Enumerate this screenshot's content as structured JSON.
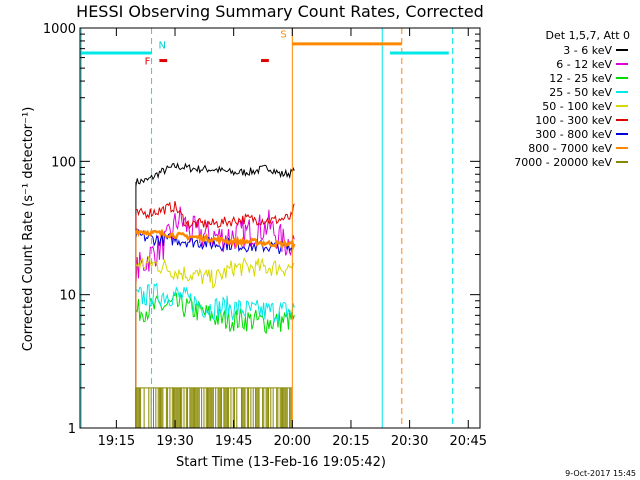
{
  "chart_data": {
    "type": "line",
    "title": "HESSI Observing Summary Count Rates, Corrected",
    "xlabel": "Start Time (13-Feb-16 19:05:42)",
    "ylabel": "Corrected Count Rate (s⁻¹ detector⁻¹)",
    "yscale": "log",
    "ylim": [
      1,
      1000
    ],
    "xlim": [
      "19:05:42",
      "20:48:00"
    ],
    "x_ticks": [
      "19:15",
      "19:30",
      "19:45",
      "20:00",
      "20:15",
      "20:30",
      "20:45"
    ],
    "y_ticks": [
      "1",
      "10",
      "100",
      "1000"
    ],
    "grid": false,
    "legend_position": "right",
    "legend_title": "Det 1,5,7, Att 0",
    "timestamp": "9-Oct-2017 15:45",
    "series": [
      {
        "name": "3 - 6 keV",
        "color": "#000000",
        "x": [
          "19:20",
          "19:23",
          "19:26",
          "19:30",
          "19:35",
          "19:40",
          "19:45",
          "19:50",
          "19:54",
          "19:57",
          "20:00",
          "20:00:30"
        ],
        "values": [
          70,
          72,
          82,
          92,
          88,
          87,
          82,
          84,
          90,
          80,
          82,
          85
        ]
      },
      {
        "name": "6 - 12 keV",
        "color": "#dd00dd",
        "x": [
          "19:20",
          "19:24",
          "19:28",
          "19:31",
          "19:34",
          "19:38",
          "19:42",
          "19:46",
          "19:50",
          "19:54",
          "19:58",
          "20:00:30"
        ],
        "values": [
          15,
          20,
          25,
          38,
          30,
          28,
          27,
          28,
          30,
          33,
          24,
          26
        ]
      },
      {
        "name": "12 - 25 keV",
        "color": "#00dd00",
        "x": [
          "19:20",
          "19:25",
          "19:30",
          "19:36",
          "19:42",
          "19:48",
          "19:54",
          "20:00",
          "20:00:30"
        ],
        "values": [
          7.5,
          8,
          8.5,
          7.5,
          6.5,
          6.5,
          6.2,
          6.5,
          7
        ]
      },
      {
        "name": "25 - 50 keV",
        "color": "#00e8e8",
        "x": [
          "19:20",
          "19:25",
          "19:30",
          "19:34",
          "19:38",
          "19:44",
          "19:50",
          "19:56",
          "20:00",
          "20:00:30"
        ],
        "values": [
          9.5,
          10,
          10,
          9,
          8,
          8,
          7.5,
          7.5,
          7.5,
          8
        ]
      },
      {
        "name": "50 - 100 keV",
        "color": "#d8d800",
        "x": [
          "19:20",
          "19:25",
          "19:30",
          "19:35",
          "19:40",
          "19:45",
          "19:50",
          "19:55",
          "20:00",
          "20:00:30"
        ],
        "values": [
          17,
          17,
          15,
          14,
          13,
          16,
          16,
          16,
          16,
          17
        ]
      },
      {
        "name": "100 - 300 keV",
        "color": "#e00000",
        "x": [
          "19:20",
          "19:25",
          "19:30",
          "19:33",
          "19:40",
          "19:48",
          "19:55",
          "20:00",
          "20:00:30"
        ],
        "values": [
          40,
          42,
          46,
          34,
          34,
          37,
          36,
          38,
          48
        ]
      },
      {
        "name": "300 - 800 keV",
        "color": "#0000dd",
        "x": [
          "19:20",
          "19:25",
          "19:30",
          "19:35",
          "19:40",
          "19:45",
          "19:50",
          "19:55",
          "20:00"
        ],
        "values": [
          28,
          26,
          26,
          25,
          24,
          24,
          23,
          23,
          22
        ]
      },
      {
        "name": "800 - 7000 keV",
        "color": "#ff8800",
        "x": [
          "19:20",
          "19:25",
          "19:30",
          "19:35",
          "19:40",
          "19:45",
          "19:50",
          "19:55",
          "20:00",
          "20:00:30"
        ],
        "values": [
          30,
          29,
          28,
          27,
          26,
          25,
          25,
          24,
          24,
          24
        ]
      },
      {
        "name": "7000 - 20000 keV",
        "color": "#888800",
        "x": [
          "19:20",
          "19:30",
          "19:40",
          "19:50",
          "20:00"
        ],
        "values": [
          2,
          2,
          2,
          2,
          2
        ]
      }
    ],
    "annotations": [
      {
        "label": "N",
        "color": "#00cccc",
        "x": "19:24"
      },
      {
        "label": "F",
        "color": "#e00000",
        "x": "19:23"
      },
      {
        "label": "S",
        "color": "#ff8800",
        "x": "20:00"
      }
    ],
    "orbit_bars": [
      {
        "color": "#00e8e8",
        "y": 650,
        "from": "19:05:42",
        "to": "19:24"
      },
      {
        "color": "#00e8e8",
        "y": 650,
        "from": "20:25",
        "to": "20:40"
      },
      {
        "color": "#ff8800",
        "y": 760,
        "from": "20:00",
        "to": "20:28"
      },
      {
        "color": "#e00000",
        "y": 570,
        "from": "19:26",
        "to": "19:28"
      },
      {
        "color": "#e00000",
        "y": 570,
        "from": "19:52",
        "to": "19:54"
      }
    ],
    "vertical_lines": [
      {
        "color": "#00e8e8",
        "style": "solid",
        "x": "19:06"
      },
      {
        "color": "#00e8e8",
        "style": "dashed",
        "x": "19:24"
      },
      {
        "color": "#ff8800",
        "style": "solid",
        "x": "20:00"
      },
      {
        "color": "#00e8e8",
        "style": "solid",
        "x": "20:23"
      },
      {
        "color": "#ff8800",
        "style": "dashed",
        "x": "20:28"
      },
      {
        "color": "#00e8e8",
        "style": "dashed",
        "x": "20:41"
      }
    ]
  }
}
